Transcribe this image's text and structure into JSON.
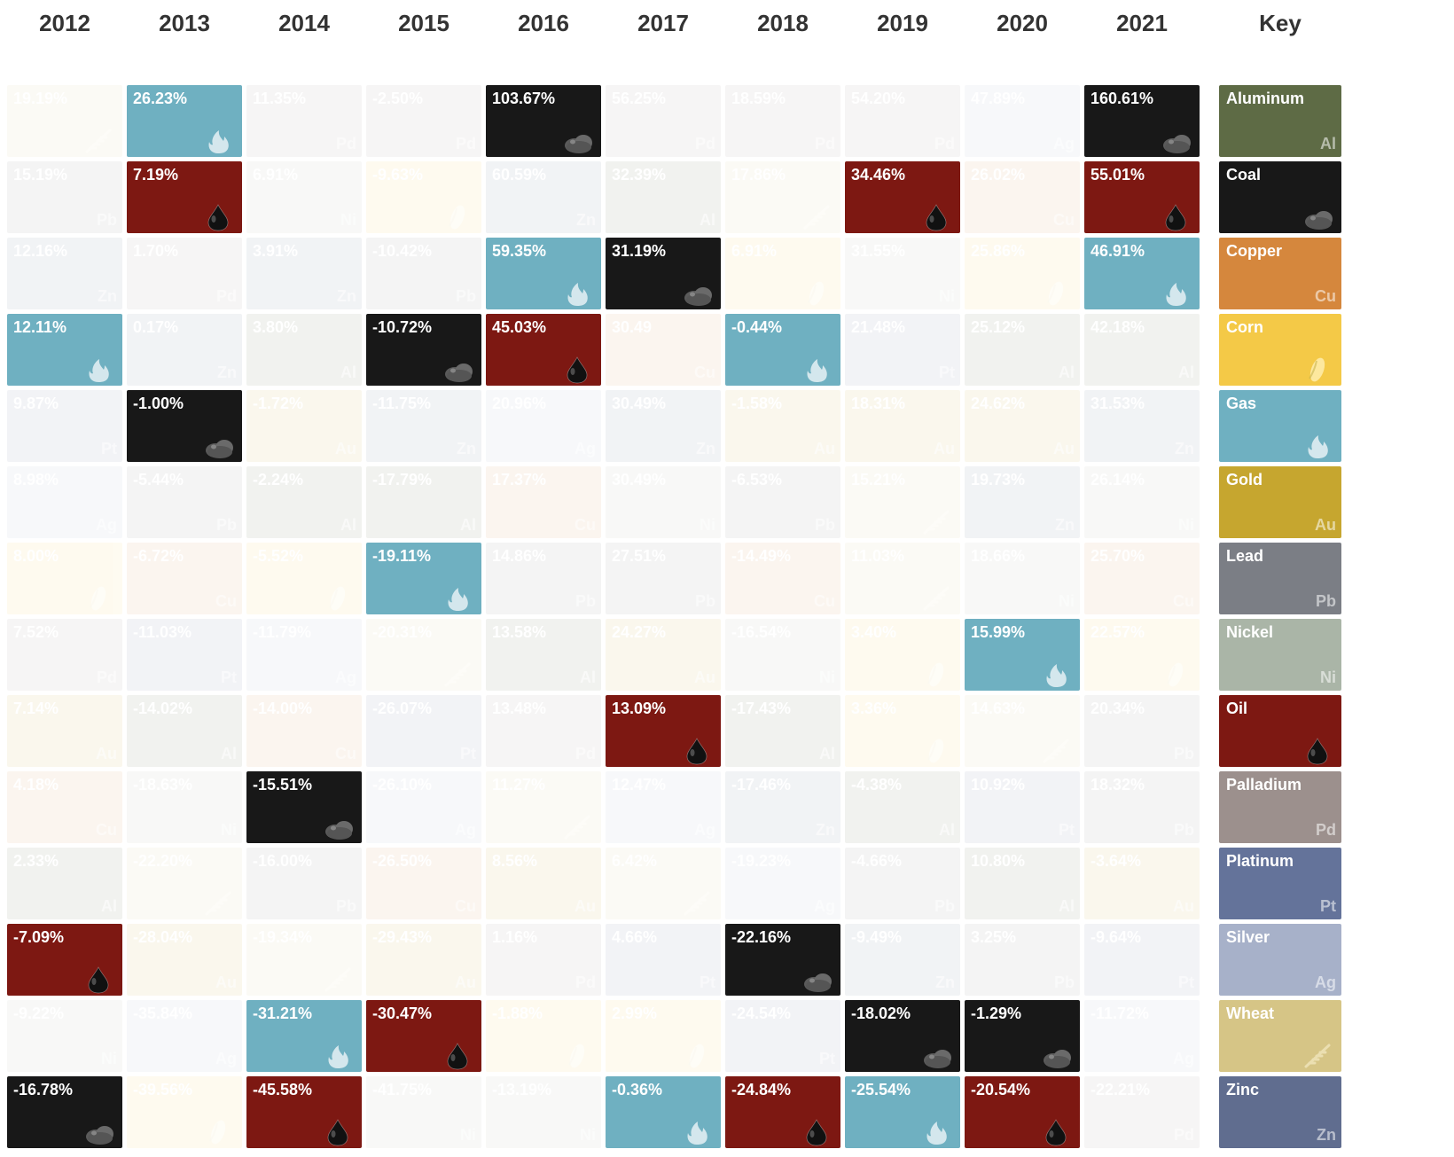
{
  "years": [
    "2012",
    "2013",
    "2014",
    "2015",
    "2016",
    "2017",
    "2018",
    "2019",
    "2020",
    "2021"
  ],
  "keyTitle": "Key",
  "commodities": {
    "aluminum": {
      "name": "Aluminum",
      "symbol": "Al",
      "color": "#5e6b45",
      "icon": "text"
    },
    "coal": {
      "name": "Coal",
      "symbol": "",
      "color": "#181818",
      "icon": "cloud"
    },
    "copper": {
      "name": "Copper",
      "symbol": "Cu",
      "color": "#d5873d",
      "icon": "text"
    },
    "corn": {
      "name": "Corn",
      "symbol": "",
      "color": "#f4c947",
      "icon": "corn"
    },
    "gas": {
      "name": "Gas",
      "symbol": "",
      "color": "#6fb0c1",
      "icon": "flame"
    },
    "gold": {
      "name": "Gold",
      "symbol": "Au",
      "color": "#c6a62f",
      "icon": "text"
    },
    "lead": {
      "name": "Lead",
      "symbol": "Pb",
      "color": "#7b7e85",
      "icon": "text"
    },
    "nickel": {
      "name": "Nickel",
      "symbol": "Ni",
      "color": "#aab5a7",
      "icon": "text"
    },
    "oil": {
      "name": "Oil",
      "symbol": "",
      "color": "#7d1812",
      "icon": "drop"
    },
    "palladium": {
      "name": "Palladium",
      "symbol": "Pd",
      "color": "#9c908d",
      "icon": "text"
    },
    "platinum": {
      "name": "Platinum",
      "symbol": "Pt",
      "color": "#64739a",
      "icon": "text"
    },
    "silver": {
      "name": "Silver",
      "symbol": "Ag",
      "color": "#a7b1c9",
      "icon": "text"
    },
    "wheat": {
      "name": "Wheat",
      "symbol": "",
      "color": "#d6c586",
      "icon": "wheat"
    },
    "zinc": {
      "name": "Zinc",
      "symbol": "Zn",
      "color": "#606d8f",
      "icon": "text"
    }
  },
  "keyOrder": [
    "aluminum",
    "coal",
    "copper",
    "corn",
    "gas",
    "gold",
    "lead",
    "nickel",
    "oil",
    "palladium",
    "platinum",
    "silver",
    "wheat",
    "zinc"
  ],
  "rows": [
    [
      {
        "c": "wheat",
        "v": "19.19%",
        "f": true
      },
      {
        "c": "gas",
        "v": "26.23%",
        "f": false
      },
      {
        "c": "palladium",
        "v": "11.35%",
        "f": true
      },
      {
        "c": "palladium",
        "v": "-2.50%",
        "f": true
      },
      {
        "c": "coal",
        "v": "103.67%",
        "f": false
      },
      {
        "c": "palladium",
        "v": "56.25%",
        "f": true
      },
      {
        "c": "palladium",
        "v": "18.59%",
        "f": true
      },
      {
        "c": "palladium",
        "v": "54.20%",
        "f": true
      },
      {
        "c": "silver",
        "v": "47.89%",
        "f": true
      },
      {
        "c": "coal",
        "v": "160.61%",
        "f": false
      }
    ],
    [
      {
        "c": "lead",
        "v": "15.19%",
        "f": true
      },
      {
        "c": "oil",
        "v": "7.19%",
        "f": false
      },
      {
        "c": "nickel",
        "v": "6.91%",
        "f": true
      },
      {
        "c": "corn",
        "v": "-9.63%",
        "f": true
      },
      {
        "c": "zinc",
        "v": "60.59%",
        "f": true
      },
      {
        "c": "aluminum",
        "v": "32.39%",
        "f": true
      },
      {
        "c": "wheat",
        "v": "17.86%",
        "f": true
      },
      {
        "c": "oil",
        "v": "34.46%",
        "f": false
      },
      {
        "c": "copper",
        "v": "26.02%",
        "f": true
      },
      {
        "c": "oil",
        "v": "55.01%",
        "f": false
      }
    ],
    [
      {
        "c": "zinc",
        "v": "12.16%",
        "f": true
      },
      {
        "c": "palladium",
        "v": "1.70%",
        "f": true
      },
      {
        "c": "zinc",
        "v": "3.91%",
        "f": true
      },
      {
        "c": "lead",
        "v": "-10.42%",
        "f": true
      },
      {
        "c": "gas",
        "v": "59.35%",
        "f": false
      },
      {
        "c": "coal",
        "v": "31.19%",
        "f": false
      },
      {
        "c": "corn",
        "v": "6.91%",
        "f": true
      },
      {
        "c": "nickel",
        "v": "31.55%",
        "f": true
      },
      {
        "c": "corn",
        "v": "25.86%",
        "f": true
      },
      {
        "c": "gas",
        "v": "46.91%",
        "f": false
      }
    ],
    [
      {
        "c": "gas",
        "v": "12.11%",
        "f": false
      },
      {
        "c": "zinc",
        "v": "0.17%",
        "f": true
      },
      {
        "c": "aluminum",
        "v": "3.80%",
        "f": true
      },
      {
        "c": "coal",
        "v": "-10.72%",
        "f": false
      },
      {
        "c": "oil",
        "v": "45.03%",
        "f": false
      },
      {
        "c": "copper",
        "v": "30.49",
        "f": true
      },
      {
        "c": "gas",
        "v": "-0.44%",
        "f": false
      },
      {
        "c": "platinum",
        "v": "21.48%",
        "f": true
      },
      {
        "c": "aluminum",
        "v": "25.12%",
        "f": true
      },
      {
        "c": "aluminum",
        "v": "42.18%",
        "f": true
      }
    ],
    [
      {
        "c": "platinum",
        "v": "9.87%",
        "f": true
      },
      {
        "c": "coal",
        "v": "-1.00%",
        "f": false
      },
      {
        "c": "gold",
        "v": "-1.72%",
        "f": true
      },
      {
        "c": "zinc",
        "v": "-11.75%",
        "f": true
      },
      {
        "c": "silver",
        "v": "20.96%",
        "f": true
      },
      {
        "c": "zinc",
        "v": "30.49%",
        "f": true
      },
      {
        "c": "gold",
        "v": "-1.58%",
        "f": true
      },
      {
        "c": "gold",
        "v": "18.31%",
        "f": true
      },
      {
        "c": "gold",
        "v": "24.62%",
        "f": true
      },
      {
        "c": "zinc",
        "v": "31.53%",
        "f": true
      }
    ],
    [
      {
        "c": "silver",
        "v": "8.98%",
        "f": true
      },
      {
        "c": "lead",
        "v": "-5.44%",
        "f": true
      },
      {
        "c": "aluminum",
        "v": "-2.24%",
        "f": true
      },
      {
        "c": "aluminum",
        "v": "-17.79%",
        "f": true
      },
      {
        "c": "copper",
        "v": "17.37%",
        "f": true
      },
      {
        "c": "nickel",
        "v": "30.49%",
        "f": true
      },
      {
        "c": "lead",
        "v": "-6.53%",
        "f": true
      },
      {
        "c": "wheat",
        "v": "15.21%",
        "f": true
      },
      {
        "c": "zinc",
        "v": "19.73%",
        "f": true
      },
      {
        "c": "nickel",
        "v": "26.14%",
        "f": true
      }
    ],
    [
      {
        "c": "corn",
        "v": "8.00%",
        "f": true
      },
      {
        "c": "copper",
        "v": "-6.72%",
        "f": true
      },
      {
        "c": "corn",
        "v": "-5.52%",
        "f": true
      },
      {
        "c": "gas",
        "v": "-19.11%",
        "f": false
      },
      {
        "c": "lead",
        "v": "14.86%",
        "f": true
      },
      {
        "c": "lead",
        "v": "27.51%",
        "f": true
      },
      {
        "c": "copper",
        "v": "-14.49%",
        "f": true
      },
      {
        "c": "wheat",
        "v": "11.03%",
        "f": true
      },
      {
        "c": "nickel",
        "v": "18.66%",
        "f": true
      },
      {
        "c": "copper",
        "v": "25.70%",
        "f": true
      }
    ],
    [
      {
        "c": "palladium",
        "v": "7.52%",
        "f": true
      },
      {
        "c": "platinum",
        "v": "-11.03%",
        "f": true
      },
      {
        "c": "silver",
        "v": "-11.79%",
        "f": true
      },
      {
        "c": "wheat",
        "v": "-20.31%",
        "f": true
      },
      {
        "c": "aluminum",
        "v": "13.58%",
        "f": true
      },
      {
        "c": "gold",
        "v": "24.27%",
        "f": true
      },
      {
        "c": "nickel",
        "v": "-16.54%",
        "f": true
      },
      {
        "c": "corn",
        "v": "3.40%",
        "f": true
      },
      {
        "c": "gas",
        "v": "15.99%",
        "f": false
      },
      {
        "c": "corn",
        "v": "22.57%",
        "f": true
      }
    ],
    [
      {
        "c": "gold",
        "v": "7.14%",
        "f": true
      },
      {
        "c": "aluminum",
        "v": "-14.02%",
        "f": true
      },
      {
        "c": "copper",
        "v": "-14.00%",
        "f": true
      },
      {
        "c": "platinum",
        "v": "-26.07%",
        "f": true
      },
      {
        "c": "palladium",
        "v": "13.48%",
        "f": true
      },
      {
        "c": "oil",
        "v": "13.09%",
        "f": false
      },
      {
        "c": "aluminum",
        "v": "-17.43%",
        "f": true
      },
      {
        "c": "corn",
        "v": "3.36%",
        "f": true
      },
      {
        "c": "wheat",
        "v": "14.63%",
        "f": true
      },
      {
        "c": "lead",
        "v": "20.34%",
        "f": true
      }
    ],
    [
      {
        "c": "copper",
        "v": "4.18%",
        "f": true
      },
      {
        "c": "nickel",
        "v": "-18.63%",
        "f": true
      },
      {
        "c": "coal",
        "v": "-15.51%",
        "f": false
      },
      {
        "c": "silver",
        "v": "-26.10%",
        "f": true
      },
      {
        "c": "wheat",
        "v": "11.27%",
        "f": true
      },
      {
        "c": "silver",
        "v": "12.47%",
        "f": true
      },
      {
        "c": "zinc",
        "v": "-17.46%",
        "f": true
      },
      {
        "c": "aluminum",
        "v": "-4.38%",
        "f": true
      },
      {
        "c": "platinum",
        "v": "10.92%",
        "f": true
      },
      {
        "c": "lead",
        "v": "18.32%",
        "f": true
      }
    ],
    [
      {
        "c": "aluminum",
        "v": "2.33%",
        "f": true
      },
      {
        "c": "wheat",
        "v": "-22.20%",
        "f": true
      },
      {
        "c": "lead",
        "v": "-16.00%",
        "f": true
      },
      {
        "c": "copper",
        "v": "-26.50%",
        "f": true
      },
      {
        "c": "gold",
        "v": "8.56%",
        "f": true
      },
      {
        "c": "wheat",
        "v": "6.42%",
        "f": true
      },
      {
        "c": "silver",
        "v": "-19.23%",
        "f": true
      },
      {
        "c": "lead",
        "v": "-4.66%",
        "f": true
      },
      {
        "c": "aluminum",
        "v": "10.80%",
        "f": true
      },
      {
        "c": "gold",
        "v": "-3.64%",
        "f": true
      }
    ],
    [
      {
        "c": "oil",
        "v": "-7.09%",
        "f": false
      },
      {
        "c": "gold",
        "v": "-28.04%",
        "f": true
      },
      {
        "c": "wheat",
        "v": "-19.34%",
        "f": true
      },
      {
        "c": "gold",
        "v": "-29.43%",
        "f": true
      },
      {
        "c": "palladium",
        "v": "1.16%",
        "f": true
      },
      {
        "c": "platinum",
        "v": "4.66%",
        "f": true
      },
      {
        "c": "coal",
        "v": "-22.16%",
        "f": false
      },
      {
        "c": "zinc",
        "v": "-9.49%",
        "f": true
      },
      {
        "c": "lead",
        "v": "3.25%",
        "f": true
      },
      {
        "c": "platinum",
        "v": "-9.64%",
        "f": true
      }
    ],
    [
      {
        "c": "nickel",
        "v": "-9.22%",
        "f": true
      },
      {
        "c": "silver",
        "v": "-35.84%",
        "f": true
      },
      {
        "c": "gas",
        "v": "-31.21%",
        "f": false
      },
      {
        "c": "oil",
        "v": "-30.47%",
        "f": false
      },
      {
        "c": "corn",
        "v": "-1.88%",
        "f": true
      },
      {
        "c": "corn",
        "v": "2.99%",
        "f": true
      },
      {
        "c": "platinum",
        "v": "-24.54%",
        "f": true
      },
      {
        "c": "coal",
        "v": "-18.02%",
        "f": false
      },
      {
        "c": "coal",
        "v": "-1.29%",
        "f": false
      },
      {
        "c": "silver",
        "v": "-11.72%",
        "f": true
      }
    ],
    [
      {
        "c": "coal",
        "v": "-16.78%",
        "f": false
      },
      {
        "c": "corn",
        "v": "-39.56%",
        "f": true
      },
      {
        "c": "oil",
        "v": "-45.58%",
        "f": false
      },
      {
        "c": "nickel",
        "v": "-41.75%",
        "f": true
      },
      {
        "c": "nickel",
        "v": "-13.19%",
        "f": true
      },
      {
        "c": "gas",
        "v": "-0.36%",
        "f": false
      },
      {
        "c": "oil",
        "v": "-24.84%",
        "f": false
      },
      {
        "c": "gas",
        "v": "-25.54%",
        "f": false
      },
      {
        "c": "oil",
        "v": "-20.54%",
        "f": false
      },
      {
        "c": "palladium",
        "v": "-22.21%",
        "f": true
      }
    ]
  ]
}
